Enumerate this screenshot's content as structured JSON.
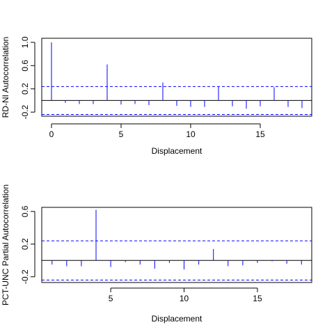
{
  "colors": {
    "bar": "#0000ff",
    "ci_line": "#0000ff",
    "zero_line": "#000000",
    "frame": "#000000",
    "background": "#ffffff"
  },
  "chart_data": [
    {
      "type": "bar",
      "subtype": "acf-spikes",
      "xlabel": "Displacement",
      "ylabel": "RD-NI Autocorrelation",
      "xlim": [
        -0.7,
        18.7
      ],
      "ylim": [
        -0.27,
        1.07
      ],
      "xticks": [
        "0",
        "5",
        "10",
        "15"
      ],
      "yticks": [
        "-0.2",
        "0.2",
        "0.6",
        "1.0"
      ],
      "ci": [
        -0.24,
        0.24
      ],
      "grid": false,
      "x": [
        0,
        1,
        2,
        3,
        4,
        5,
        6,
        7,
        8,
        9,
        10,
        11,
        12,
        13,
        14,
        15,
        16,
        17,
        18
      ],
      "values": [
        1.0,
        -0.04,
        -0.06,
        -0.06,
        0.62,
        -0.07,
        -0.06,
        -0.08,
        0.31,
        -0.09,
        -0.11,
        -0.11,
        0.24,
        -0.1,
        -0.14,
        -0.1,
        0.23,
        -0.11,
        -0.13
      ]
    },
    {
      "type": "bar",
      "subtype": "pacf-spikes",
      "xlabel": "Displacement",
      "ylabel": "PCT-UNC Partial Autocorrelation",
      "xlim": [
        0.3,
        18.7
      ],
      "ylim": [
        -0.27,
        0.65
      ],
      "xticks": [
        "5",
        "10",
        "15"
      ],
      "yticks": [
        "-0.2",
        "0.2",
        "0.6"
      ],
      "ci": [
        -0.24,
        0.24
      ],
      "grid": false,
      "x": [
        1,
        2,
        3,
        4,
        5,
        6,
        7,
        8,
        9,
        10,
        11,
        12,
        13,
        14,
        15,
        16,
        17,
        18
      ],
      "values": [
        -0.05,
        -0.07,
        -0.07,
        0.62,
        -0.08,
        -0.02,
        -0.05,
        -0.1,
        -0.03,
        -0.11,
        -0.05,
        0.14,
        -0.07,
        -0.06,
        -0.03,
        -0.01,
        -0.04,
        -0.05
      ]
    }
  ]
}
